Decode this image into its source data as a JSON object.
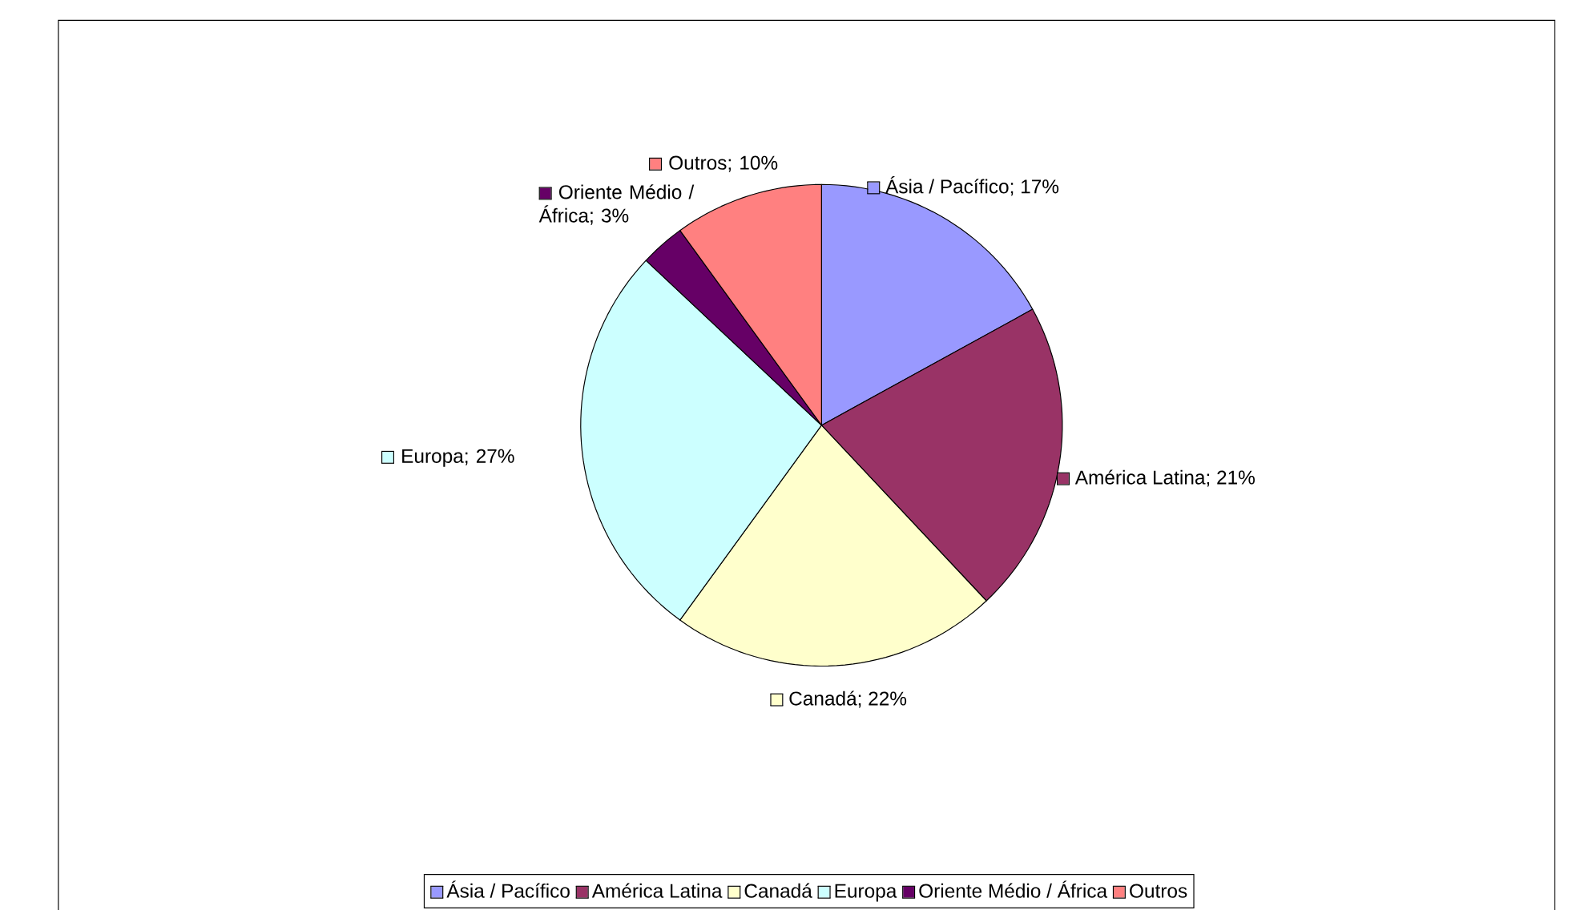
{
  "chart_data": {
    "type": "pie",
    "categories": [
      "Ásia / Pacífico",
      "América Latina",
      "Canadá",
      "Europa",
      "Oriente Médio / África",
      "Outros"
    ],
    "values": [
      17,
      21,
      22,
      27,
      3,
      10
    ],
    "value_labels": [
      "Ásia / Pacífico; 17%",
      "América Latina; 21%",
      "Canadá; 22%",
      "Europa; 27%",
      "Oriente Médio / África; 3%",
      "Outros; 10%"
    ],
    "colors": [
      "#9999ff",
      "#993366",
      "#ffffcc",
      "#ccffff",
      "#660066",
      "#ff8080"
    ],
    "legend": "bottom"
  }
}
